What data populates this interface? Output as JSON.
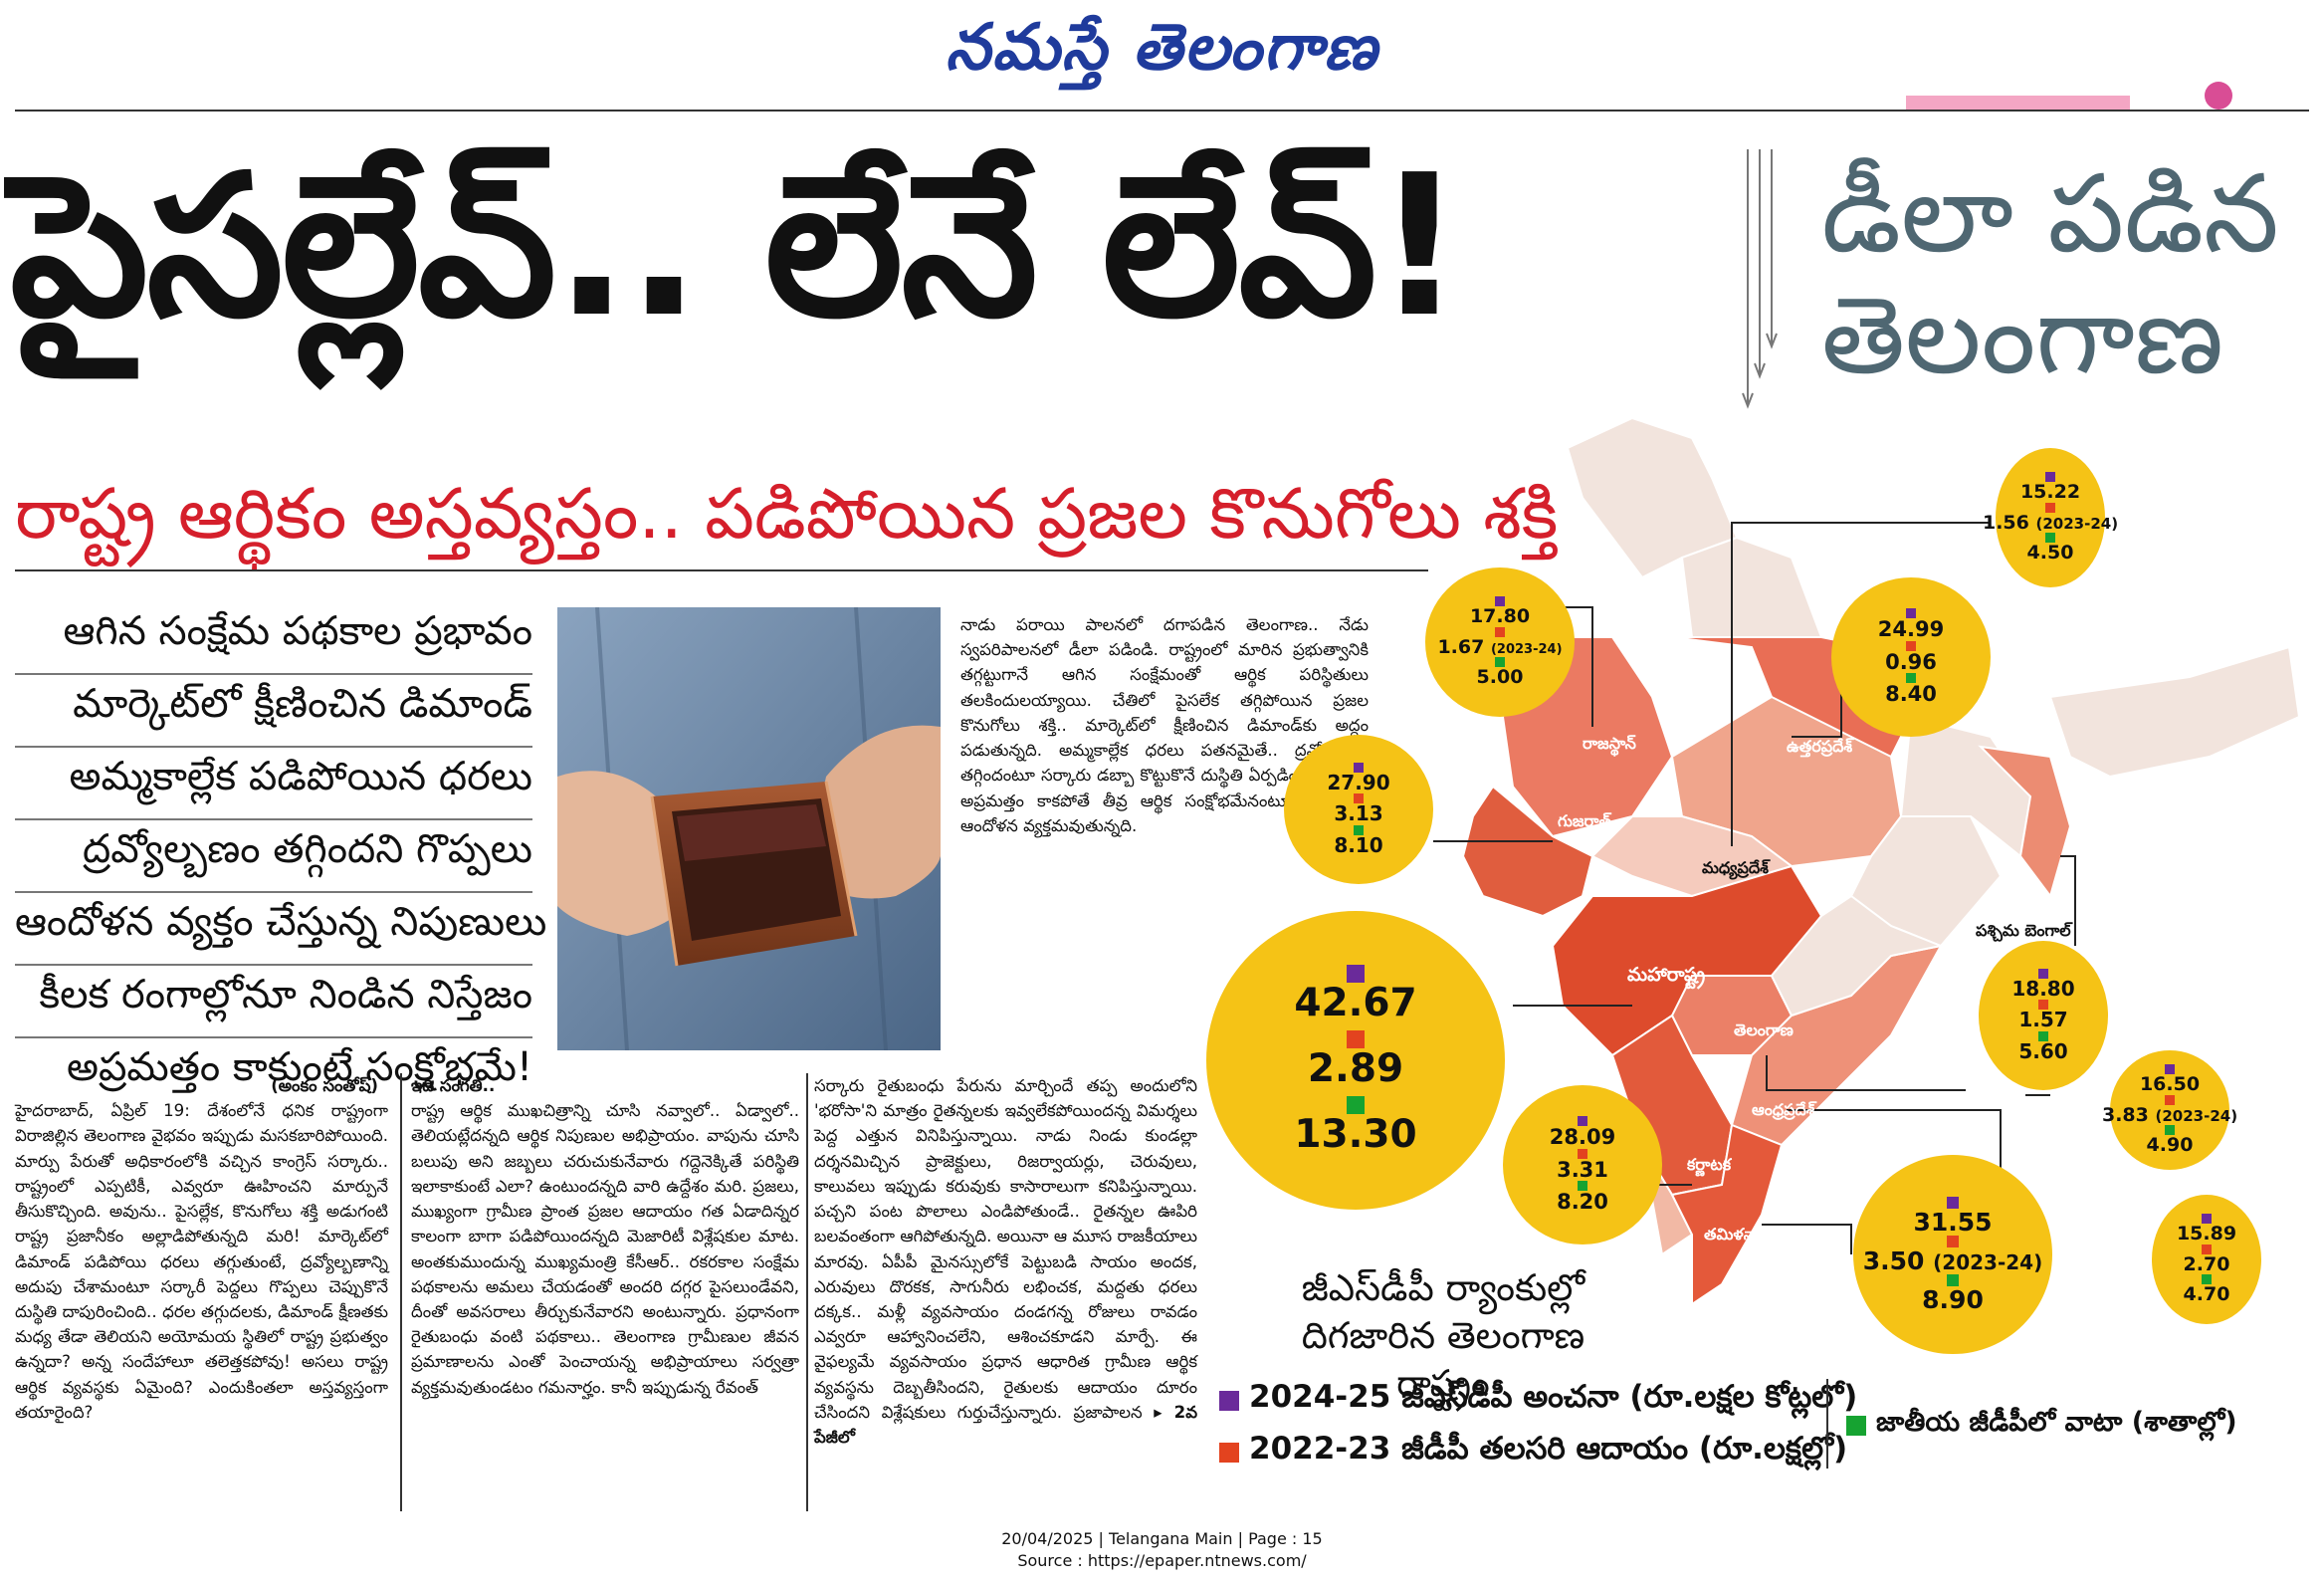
{
  "masthead": "నమస్తే తెలంగాణ",
  "headline": "పైసల్లేవ్.. లేనే లేవ్!",
  "side_headline": [
    "డీలా పడిన",
    "తెలంగాణ"
  ],
  "subheadline": "రాష్ట్ర ఆర్థికం అస్తవ్యస్తం.. పడిపోయిన ప్రజల కొనుగోలు శక్తి",
  "bullets": [
    "ఆగిన సంక్షేమ పథకాల ప్రభావం",
    "మార్కెట్‌లో క్షీణించిన డిమాండ్‌",
    "అమ్మకాల్లేక పడిపోయిన ధరలు",
    "ద్రవ్యోల్బణం తగ్గిందని గొప్పలు",
    "ఆందోళన వ్యక్తం చేస్తున్న నిపుణులు",
    "కీలక రంగాల్లోనూ నిండిన నిస్తేజం",
    "అప్రమత్తం కాకుంటే సంక్షోభమే!"
  ],
  "intro_text": "నాడు పరాయి పాలనలో దగాపడిన తెలంగాణ.. నేడు స్వపరిపాలనలో డీలా పడిండి. రాష్ట్రంలో మారిన ప్రభుత్వానికి తగ్గట్టుగానే ఆగిన సంక్షేమంతో ఆర్థిక పరిస్థితులు తలకిందులయ్యాయి. చేతిలో పైసలేక తగ్గిపోయిన ప్రజల కొనుగోలు శక్తి.. మార్కెట్‌లో క్షీణించిన డిమాండ్‌కు అద్దం పడుతున్నది. అమ్మకాల్లేక ధరలు పతనమైతే.. ద్రవ్యోల్బణం తగ్గిందంటూ సర్కారు డబ్బా కొట్టుకొనే దుస్థితి ఏర్పడింది. ఇకనైనా అప్రమత్తం కాకపోతే తీవ్ర ఆర్థిక సంక్షోభమేనంటూ నిపుణుల్లో ఆందోళన వ్యక్తమవుతున్నది.",
  "byline": "(అంకం సంతోష్‌)",
  "col1_text": "హైదరాబాద్‌, ఏప్రిల్‌ 19: దేశంలోనే ధనిక రాష్ట్రంగా విరాజిల్లిన తెలంగాణ వైభవం ఇప్పుడు మసకబారిపోయింది. మార్పు పేరుతో అధికారంలోకి వచ్చిన కాంగ్రెస్‌ సర్కారు.. రాష్ట్రంలో ఎప్పటికీ, ఎవ్వరూ ఊహించని మార్పునే తీసుకొచ్చింది. అవును.. పైసల్లేక, కొనుగోలు శక్తి అడుగంటి రాష్ట్ర ప్రజానీకం అల్లాడిపోతున్నది మరి! మార్కెట్‌లో డిమాండ్‌ పడిపోయి ధరలు తగ్గుతుంటే, ద్రవ్యోల్బణాన్ని అదుపు చేశామంటూ సర్కారీ పెద్దలు గొప్పలు చెప్పుకొనే దుస్థితి దాపురించింది.. ధరల తగ్గుదలకు, డిమాండ్‌ క్షీణతకు మధ్య తేడా తెలియని అయోమయ స్థితిలో రాష్ట్ర ప్రభుత్వం ఉన్నదా? అన్న సందేహాలూ తలెత్తకపోవు! అసలు రాష్ట్ర ఆర్థిక వ్యవస్థకు ఏమైంది? ఎందుకింతలా అస్తవ్యస్తంగా తయారైంది?",
  "col2_head": "ఇదీ సంగతి..",
  "col2_text": "రాష్ట్ర ఆర్థిక ముఖచిత్రాన్ని చూసి నవ్వాలో.. ఏడ్వాలో.. తెలియట్లేదన్నది ఆర్థిక నిపుణుల అభిప్రాయం. వాపును చూసి బలుపు అని జబ్బలు చరుచుకునేవారు గద్దెనెక్కితే పరిస్థితి ఇలాకాకుంటే ఎలా? ఉంటుందన్నది వారి ఉద్దేశం మరి. ప్రజలు, ముఖ్యంగా గ్రామీణ ప్రాంత ప్రజల ఆదాయం గత ఏడాదిన్నర కాలంగా బాగా పడిపోయిందన్నది మెజారిటీ విశ్లేషకుల మాట. అంతకుముందున్న ముఖ్యమంత్రి కేసీఆర్‌.. రకరకాల సంక్షేమ పథకాలను అమలు చేయడంతో అందరి దగ్గర పైసలుండేవని, దీంతో అవసరాలు తీర్చుకునేవారని అంటున్నారు. ప్రధానంగా రైతుబంధు వంటి పథకాలు.. తెలంగాణ గ్రామీణుల జీవన ప్రమాణాలను ఎంతో పెంచాయన్న అభిప్రాయాలు సర్వత్రా వ్యక్తమవుతుండటం గమనార్హం. కానీ ఇప్పుడున్న రేవంత్‌",
  "col3_text": "సర్కారు రైతుబంధు పేరును మార్చిందే తప్ప అందులోని 'భరోసా'ని మాత్రం రైతన్నలకు ఇవ్వలేకపోయిందన్న విమర్శలు పెద్ద ఎత్తున వినిపిస్తున్నాయి. నాడు నిండు కుండల్లా దర్శనమిచ్చిన ప్రాజెక్టులు, రిజర్వాయర్లు, చెరువులు, కాలువలు ఇప్పుడు కరువుకు కాసారాలుగా కనిపిస్తున్నాయి. పచ్చని పంట పొలాలు ఎండిపోతుండే.. రైతన్నల ఊపిరి బలవంతంగా ఆగిపోతున్నది. అయినా ఆ మూస రాజకీయాలు మారవు. ఏపీపీ మైనస్సులోకే పెట్టుబడి సాయం అందక, ఎరువులు దొరకక, సాగునీరు లభించక, మద్దతు ధరలు దక్కక.. మళ్లీ వ్యవసాయం దండగన్న రోజులు రావడం ఎవ్వరూ ఆహ్వానించలేని, ఆశించకూడని మార్పే. ఈ వైఫల్యమే వ్యవసాయం ప్రధాన ఆధారిత గ్రామీణ ఆర్థిక వ్యవస్థను దెబ్బతీసిందని, రైతులకు ఆదాయం దూరం చేసిందని విశ్లేషకులు గుర్తుచేస్తున్నారు. ప్రజాపాలన",
  "continued": "2వ పేజీలో",
  "rank_text": "జీఎస్‌డీపీ ర్యాంకుల్లో దిగజారిన తెలంగాణ రాష్ట్రం",
  "states": {
    "rajasthan": "రాజస్థాన్‌",
    "up": "ఉత్తరప్రదేశ్‌",
    "gujarat": "గుజరాత్‌",
    "mp": "మధ్యప్రదేశ్‌",
    "maharashtra": "మహారాష్ట్ర",
    "wb": "పశ్చిమ బెంగాల్‌",
    "telangana": "తెలంగాణ",
    "ap": "ఆంధ్రప్రదేశ్‌",
    "karnataka": "కర్ణాటక",
    "tn": "తమిళనాడు"
  },
  "bubbles": {
    "rajasthan": {
      "gsdp": "17.80",
      "income": "1.67",
      "income_note": "(2023-24)",
      "share": "5.00"
    },
    "up": {
      "gsdp": "24.99",
      "income": "0.96",
      "share": "8.40"
    },
    "gujarat": {
      "gsdp": "27.90",
      "income": "3.13",
      "share": "8.10"
    },
    "maharashtra": {
      "gsdp": "42.67",
      "income": "2.89",
      "share": "13.30"
    },
    "mp": {
      "gsdp": "15.22",
      "income": "1.56",
      "income_note": "(2023-24)",
      "share": "4.50"
    },
    "wb": {
      "gsdp": "18.80",
      "income": "1.57",
      "share": "5.60"
    },
    "telangana": {
      "gsdp": "16.50",
      "income": "3.83",
      "income_note": "(2023-24)",
      "share": "4.90"
    },
    "ap": {
      "gsdp": "15.89",
      "income": "2.70",
      "share": "4.70"
    },
    "karnataka": {
      "gsdp": "28.09",
      "income": "3.31",
      "share": "8.20"
    },
    "tn": {
      "gsdp": "31.55",
      "income": "3.50",
      "income_note": "(2023-24)",
      "share": "8.90"
    }
  },
  "legend": {
    "gsdp": "2024-25 జీఎస్‌డీపీ అంచనా (రూ.లక్షల కోట్లలో)",
    "income": "2022-23 జీడీపీ తలసరి ఆదాయం (రూ.లక్షల్లో)",
    "share": "జాతీయ జీడీపీలో వాటా (శాతాల్లో)"
  },
  "colors": {
    "masthead": "#1f3b9c",
    "subhead": "#d51f2b",
    "side_headline": "#4f6772",
    "bubble": "#f5c316",
    "gsdp_marker": "#6a2a9a",
    "income_marker": "#e3431f",
    "share_marker": "#16a331"
  },
  "footer": {
    "line1": "20/04/2025 | Telangana Main | Page : 15",
    "line2": "Source : https://epaper.ntnews.com/"
  }
}
